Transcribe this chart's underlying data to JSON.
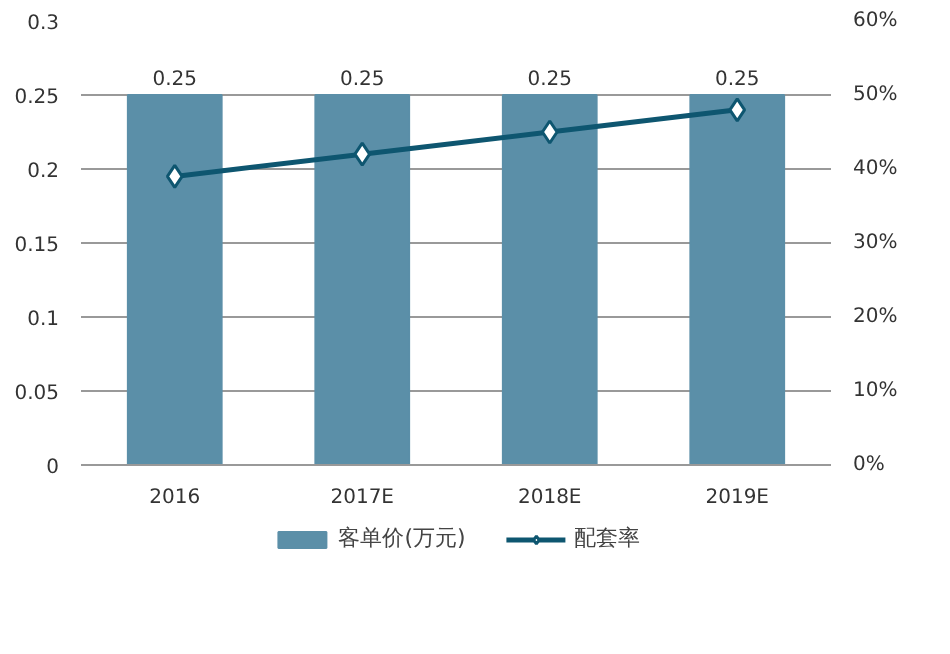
{
  "chart_data": {
    "type": "bar",
    "categories": [
      "2016",
      "2017E",
      "2018E",
      "2019E"
    ],
    "series": [
      {
        "name": "客单价(万元)",
        "color": "#5b8fa8",
        "values": [
          0.25,
          0.25,
          0.25,
          0.25
        ],
        "value_labels": [
          "0.25",
          "0.25",
          "0.25",
          "0.25"
        ]
      },
      {
        "name": "配套率",
        "type": "line",
        "axis": "y2",
        "color": "#0e5670",
        "marker": "diamond",
        "values": [
          39,
          42,
          45,
          48
        ]
      }
    ],
    "ylim": [
      0,
      0.3
    ],
    "yticks": [
      0,
      0.05,
      0.1,
      0.15,
      0.2,
      0.25,
      0.3
    ],
    "y2lim": [
      0,
      60
    ],
    "y2ticks": [
      {
        "value": 0,
        "label": "0%"
      },
      {
        "value": 10,
        "label": "10%"
      },
      {
        "value": 20,
        "label": "20%"
      },
      {
        "value": 30,
        "label": "30%"
      },
      {
        "value": 40,
        "label": "40%"
      },
      {
        "value": 50,
        "label": "50%"
      },
      {
        "value": 60,
        "label": "60%"
      }
    ],
    "grid": "y",
    "legend": "bottom"
  }
}
